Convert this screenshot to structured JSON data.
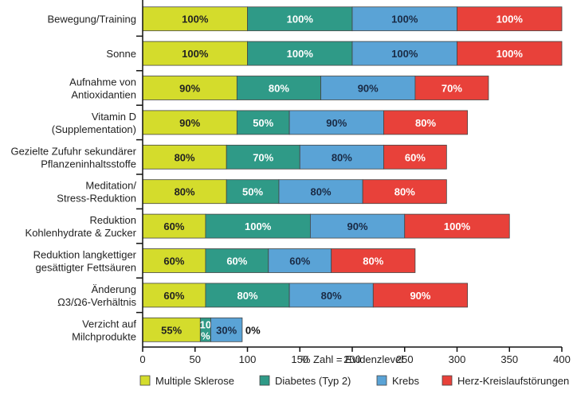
{
  "chart_data": {
    "type": "bar",
    "orientation": "horizontal",
    "stacked": true,
    "title": "",
    "xlabel": "% Zahl = Evidenzlevel",
    "ylabel": "",
    "xlim": [
      0,
      400
    ],
    "xticks": [
      0,
      50,
      100,
      150,
      200,
      250,
      300,
      350,
      400
    ],
    "grid": false,
    "legend_position": "bottom",
    "categories": [
      [
        "Bewegung/Training"
      ],
      [
        "Sonne"
      ],
      [
        "Aufnahme von",
        "Antioxidantien"
      ],
      [
        "Vitamin D",
        "(Supplementation)"
      ],
      [
        "Gezielte Zufuhr sekundärer",
        "Pflanzeninhaltsstoffe"
      ],
      [
        "Meditation/",
        "Stress-Reduktion"
      ],
      [
        "Reduktion",
        "Kohlenhydrate & Zucker"
      ],
      [
        "Reduktion langkettiger",
        "gesättigter Fettsäuren"
      ],
      [
        "Änderung",
        "Ω3/Ω6-Verhältnis"
      ],
      [
        "Verzicht auf",
        "Milchprodukte"
      ]
    ],
    "series": [
      {
        "name": "Multiple Sklerose",
        "color": "#d4dc2c",
        "label_color": "#222222",
        "values": [
          100,
          100,
          90,
          90,
          80,
          80,
          60,
          60,
          60,
          55
        ],
        "labels": [
          "100%",
          "100%",
          "90%",
          "90%",
          "80%",
          "80%",
          "60%",
          "60%",
          "60%",
          "55%"
        ]
      },
      {
        "name": "Diabetes (Typ 2)",
        "color": "#2f9a87",
        "label_color": "#ffffff",
        "values": [
          100,
          100,
          80,
          50,
          70,
          50,
          100,
          60,
          80,
          10
        ],
        "labels": [
          "100%",
          "100%",
          "80%",
          "50%",
          "70%",
          "50%",
          "100%",
          "60%",
          "80%",
          "10\n%"
        ]
      },
      {
        "name": "Krebs",
        "color": "#5aa3d6",
        "label_color": "#1a2a44",
        "values": [
          100,
          100,
          90,
          90,
          80,
          80,
          90,
          60,
          80,
          30
        ],
        "labels": [
          "100%",
          "100%",
          "90%",
          "90%",
          "80%",
          "80%",
          "90%",
          "60%",
          "80%",
          "30%"
        ]
      },
      {
        "name": "Herz-Kreislaufstörungen",
        "color": "#e8413a",
        "label_color": "#ffffff",
        "values": [
          100,
          100,
          70,
          80,
          60,
          80,
          100,
          80,
          90,
          0
        ],
        "labels": [
          "100%",
          "100%",
          "70%",
          "80%",
          "60%",
          "80%",
          "100%",
          "80%",
          "90%",
          "0%"
        ]
      }
    ]
  }
}
